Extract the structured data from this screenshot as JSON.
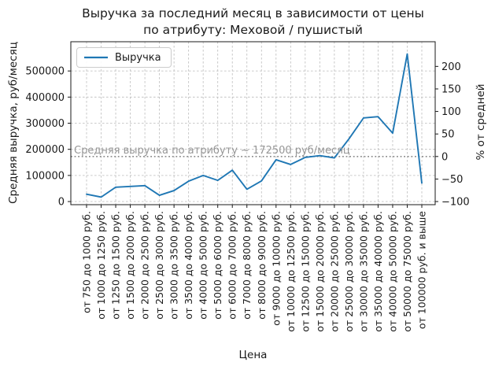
{
  "chart_data": {
    "type": "line",
    "title_line1": "Выручка за последний месяц в зависимости от цены",
    "title_line2": "по атрибуту: Меховой / пушистый",
    "xlabel": "Цена",
    "ylabel_left": "Средняя выручка, руб/месяц",
    "ylabel_right": "% от средней",
    "legend": {
      "label": "Выручка",
      "position": "upper left"
    },
    "grid": true,
    "categories": [
      "от 750 до 1000 руб.",
      "от 1000 до 1250 руб.",
      "от 1250 до 1500 руб.",
      "от 1500 до 2000 руб.",
      "от 2000 до 2500 руб.",
      "от 2500 до 3000 руб.",
      "от 3000 до 3500 руб.",
      "от 3500 до 4000 руб.",
      "от 4000 до 5000 руб.",
      "от 5000 до 6000 руб.",
      "от 6000 до 7000 руб.",
      "от 7000 до 8000 руб.",
      "от 8000 до 9000 руб.",
      "от 9000 до 10000 руб.",
      "от 10000 до 12500 руб.",
      "от 12500 до 15000 руб.",
      "от 15000 до 20000 руб.",
      "от 20000 до 25000 руб.",
      "от 25000 до 30000 руб.",
      "от 30000 до 35000 руб.",
      "от 35000 до 40000 руб.",
      "от 40000 до 50000 руб.",
      "от 50000 до 75000 руб.",
      "от 100000 руб. и выше"
    ],
    "series": [
      {
        "name": "Выручка",
        "values": [
          28000,
          17000,
          55000,
          58000,
          61000,
          24000,
          42000,
          78000,
          100000,
          81000,
          120000,
          47000,
          79000,
          160000,
          142000,
          169000,
          176000,
          167000,
          240000,
          320000,
          325000,
          262000,
          565000,
          71000
        ]
      }
    ],
    "ylim_left": [
      -12000,
      612000
    ],
    "yticks_left": [
      0,
      100000,
      200000,
      300000,
      400000,
      500000
    ],
    "yticks_right_percent": [
      -100,
      -50,
      0,
      50,
      100,
      150,
      200
    ],
    "right_axis_note": "percent = (value - 172500) / 172500 * 100",
    "average_line": {
      "value": 172500,
      "annotation": "Средняя выручка по атрибуту ~ 172500 руб/месяц"
    },
    "colors": {
      "line": "#1f77b4",
      "grid": "#bbbbbb",
      "average_line": "#8a8a8a",
      "annotation_text": "#979797",
      "spine": "#1a1a1a",
      "background": "#ffffff"
    }
  }
}
